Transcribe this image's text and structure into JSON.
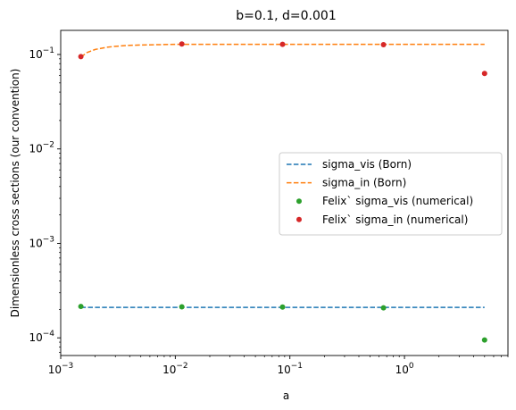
{
  "chart_data": {
    "type": "line",
    "title": "b=0.1, d=0.001",
    "xlabel": "a",
    "ylabel": "Dimensionless cross sections (our convention)",
    "xscale": "log",
    "yscale": "log",
    "xlim": [
      0.001,
      8.0
    ],
    "ylim": [
      6.5e-05,
      0.18
    ],
    "x_ticks": [
      {
        "value": 0.001,
        "base": "10",
        "exp": "−3"
      },
      {
        "value": 0.01,
        "base": "10",
        "exp": "−2"
      },
      {
        "value": 0.1,
        "base": "10",
        "exp": "−1"
      },
      {
        "value": 1,
        "base": "10",
        "exp": "0"
      }
    ],
    "y_ticks": [
      {
        "value": 0.0001,
        "base": "10",
        "exp": "−4"
      },
      {
        "value": 0.001,
        "base": "10",
        "exp": "−3"
      },
      {
        "value": 0.01,
        "base": "10",
        "exp": "−2"
      },
      {
        "value": 0.1,
        "base": "10",
        "exp": "−1"
      }
    ],
    "grid": false,
    "legend_position": "center-right",
    "series": [
      {
        "name": "sigma_vis (Born)",
        "style": "dashed-line",
        "color": "#1f77b4",
        "x": [
          0.0015,
          5.0
        ],
        "y": [
          0.00021,
          0.00021
        ]
      },
      {
        "name": "sigma_in (Born)",
        "style": "dashed-line",
        "color": "#ff7f0e",
        "x": [
          0.0015,
          0.0017,
          0.002,
          0.0025,
          0.003,
          0.004,
          0.005,
          0.007,
          0.01,
          0.02,
          0.05,
          0.1,
          0.5,
          1,
          5.0
        ],
        "y": [
          0.094,
          0.105,
          0.113,
          0.119,
          0.122,
          0.125,
          0.126,
          0.127,
          0.128,
          0.128,
          0.128,
          0.128,
          0.128,
          0.128,
          0.128
        ]
      },
      {
        "name": "Felix` sigma_vis (numerical)",
        "style": "points",
        "color": "#2ca02c",
        "x": [
          0.0015,
          0.0114,
          0.0863,
          0.656,
          5.0
        ],
        "y": [
          0.000215,
          0.000213,
          0.000212,
          0.000208,
          9.5e-05
        ]
      },
      {
        "name": "Felix` sigma_in (numerical)",
        "style": "points",
        "color": "#d62728",
        "x": [
          0.0015,
          0.0114,
          0.0863,
          0.656,
          5.0
        ],
        "y": [
          0.095,
          0.129,
          0.128,
          0.127,
          0.063
        ]
      }
    ]
  }
}
